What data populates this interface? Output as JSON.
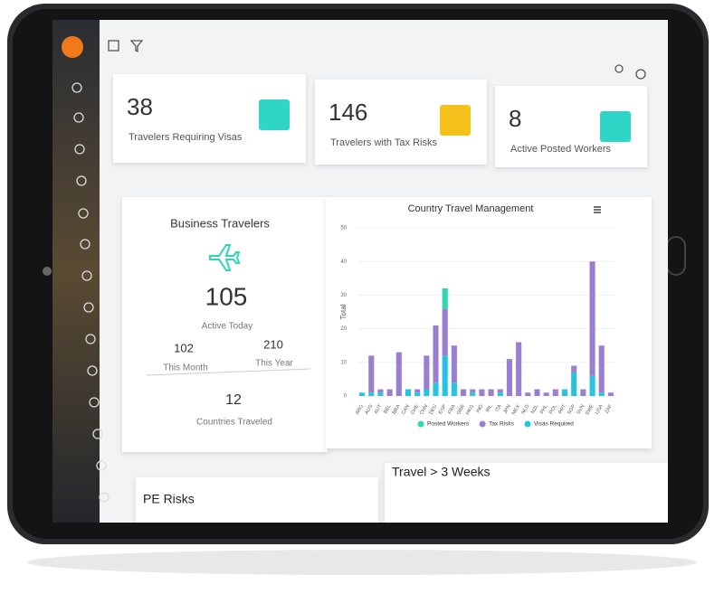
{
  "kpis": [
    {
      "value": 38,
      "label": "Travelers Requiring Visas"
    },
    {
      "value": 146,
      "label": "Travelers with Tax Risks"
    },
    {
      "value": 8,
      "label": "Active Posted Workers"
    }
  ],
  "business_travelers": {
    "title": "Business Travelers",
    "active_today": {
      "value": 105,
      "label": "Active Today"
    },
    "this_month": {
      "value": 102,
      "label": "This Month"
    },
    "this_year": {
      "value": 210,
      "label": "This Year"
    },
    "countries": {
      "value": 12,
      "label": "Countries Traveled"
    }
  },
  "chart_data": {
    "type": "stacked_bar",
    "title": "Country Travel Management",
    "y_label": "Total",
    "categories": [
      "ARG",
      "AUS",
      "AUT",
      "BEL",
      "BRA",
      "CAN",
      "CHE",
      "CHN",
      "DEU",
      "ESP",
      "FRA",
      "GBR",
      "HKG",
      "IND",
      "IRL",
      "ITA",
      "JPN",
      "MEX",
      "NLD",
      "NZL",
      "PHL",
      "POL",
      "PRT",
      "SGP",
      "SVN",
      "SWE",
      "USA",
      "ZAF"
    ],
    "series": [
      {
        "name": "Posted Workers",
        "color": "#2fd6b4",
        "values": [
          0,
          0,
          0,
          0,
          0,
          0,
          0,
          0,
          0,
          6,
          0,
          0,
          0,
          0,
          0,
          0,
          0,
          0,
          0,
          0,
          0,
          0,
          0,
          0,
          0,
          0,
          0,
          0
        ]
      },
      {
        "name": "Tax Risks",
        "color": "#9a7fd1",
        "values": [
          0,
          11,
          1,
          2,
          13,
          0,
          1,
          10,
          17,
          14,
          11,
          2,
          1,
          2,
          2,
          1,
          11,
          16,
          1,
          2,
          1,
          2,
          0,
          2,
          2,
          34,
          14,
          1
        ]
      },
      {
        "name": "Visas Required",
        "color": "#27c3e3",
        "values": [
          1,
          1,
          1,
          0,
          0,
          2,
          1,
          2,
          4,
          12,
          4,
          0,
          1,
          0,
          0,
          1,
          0,
          0,
          0,
          0,
          0,
          0,
          2,
          7,
          0,
          6,
          1,
          0
        ]
      }
    ],
    "ylim": [
      0,
      50
    ],
    "yticks": [
      0,
      10,
      20,
      30,
      40,
      50
    ],
    "legend": "bottom"
  },
  "panels": [
    "PE Risks",
    "Travel > 3 Weeks"
  ]
}
